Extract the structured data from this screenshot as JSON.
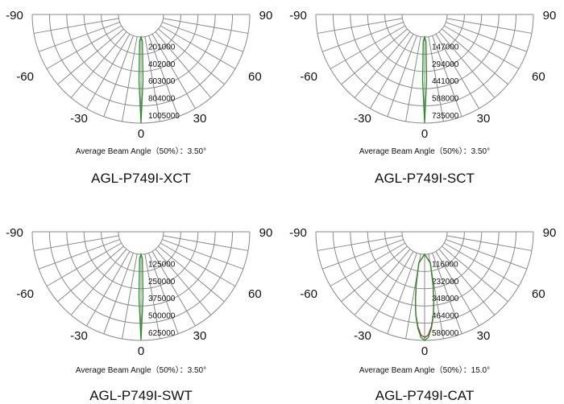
{
  "chart_data": [
    {
      "type": "polar-half",
      "model": "AGL-P749I-XCT",
      "caption": "Average Beam Angle（50%）：3.50°",
      "beam_angle_deg": 3.5,
      "angle_ticks": [
        "-90",
        "-60",
        "-30",
        "0",
        "30",
        "60",
        "90"
      ],
      "radial_ticks": [
        "201000",
        "402000",
        "603000",
        "804000",
        "1005000"
      ],
      "rmax": 1005000,
      "series": [
        {
          "color": "#2e8b2e",
          "angles": [
            0,
            1.75,
            3,
            -1.75,
            -3
          ],
          "values": [
            1005000,
            502500,
            50000,
            502500,
            50000
          ]
        }
      ]
    },
    {
      "type": "polar-half",
      "model": "AGL-P749I-SCT",
      "caption": "Average Beam Angle（50%）：3.50°",
      "beam_angle_deg": 3.5,
      "angle_ticks": [
        "-90",
        "-60",
        "-30",
        "0",
        "30",
        "60",
        "90"
      ],
      "radial_ticks": [
        "147000",
        "294000",
        "441000",
        "588000",
        "735000"
      ],
      "rmax": 735000,
      "series": [
        {
          "color": "#2e8b2e",
          "angles": [
            0,
            1.75,
            3,
            -1.75,
            -3
          ],
          "values": [
            735000,
            367500,
            40000,
            367500,
            40000
          ]
        }
      ]
    },
    {
      "type": "polar-half",
      "model": "AGL-P749I-SWT",
      "caption": "Average Beam Angle（50%）：3.50°",
      "beam_angle_deg": 3.5,
      "angle_ticks": [
        "-90",
        "-60",
        "-30",
        "0",
        "30",
        "60",
        "90"
      ],
      "radial_ticks": [
        "125000",
        "250000",
        "375000",
        "500000",
        "625000"
      ],
      "rmax": 625000,
      "series": [
        {
          "color": "#2e8b2e",
          "angles": [
            0,
            1.75,
            3,
            -1.75,
            -3
          ],
          "values": [
            625000,
            312500,
            30000,
            312500,
            30000
          ]
        }
      ]
    },
    {
      "type": "polar-half",
      "model": "AGL-P749I-CAT",
      "caption": "Average Beam Angle（50%）：15.0°",
      "beam_angle_deg": 15.0,
      "angle_ticks": [
        "-90",
        "-60",
        "-30",
        "0",
        "30",
        "60",
        "90"
      ],
      "radial_ticks": [
        "116000",
        "232000",
        "348000",
        "464000",
        "580000"
      ],
      "rmax": 580000,
      "series": [
        {
          "color": "#8b3a2a",
          "angles": [
            0,
            2,
            4,
            6,
            7.5,
            9,
            10.5,
            -2,
            -4,
            -6,
            -7.5,
            -9,
            -10.5
          ],
          "values": [
            560000,
            545000,
            490000,
            410000,
            320000,
            210000,
            60000,
            545000,
            490000,
            410000,
            320000,
            210000,
            60000
          ]
        },
        {
          "color": "#2e8b2e",
          "angles": [
            0,
            2,
            4,
            6,
            7.5,
            9,
            10.5,
            -2,
            -4,
            -6,
            -7.5,
            -9,
            -10.5
          ],
          "values": [
            580000,
            560000,
            500000,
            415000,
            325000,
            215000,
            65000,
            560000,
            500000,
            415000,
            325000,
            215000,
            65000
          ]
        }
      ]
    }
  ]
}
